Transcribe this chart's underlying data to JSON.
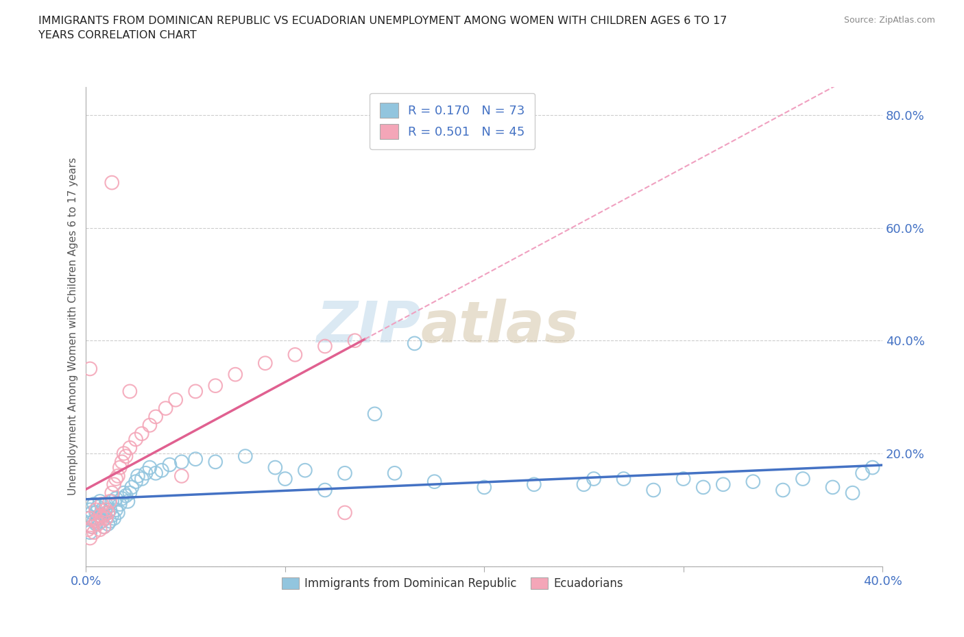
{
  "title": "IMMIGRANTS FROM DOMINICAN REPUBLIC VS ECUADORIAN UNEMPLOYMENT AMONG WOMEN WITH CHILDREN AGES 6 TO 17\nYEARS CORRELATION CHART",
  "source": "Source: ZipAtlas.com",
  "ylabel": "Unemployment Among Women with Children Ages 6 to 17 years",
  "xlim": [
    0.0,
    0.4
  ],
  "ylim": [
    0.0,
    0.85
  ],
  "xticks": [
    0.0,
    0.1,
    0.2,
    0.3,
    0.4
  ],
  "xtick_labels": [
    "0.0%",
    "",
    "",
    "",
    "40.0%"
  ],
  "ytick_labels": [
    "",
    "20.0%",
    "40.0%",
    "60.0%",
    "80.0%"
  ],
  "yticks": [
    0.0,
    0.2,
    0.4,
    0.6,
    0.8
  ],
  "legend_label1": "Immigrants from Dominican Republic",
  "legend_label2": "Ecuadorians",
  "R1": 0.17,
  "N1": 73,
  "R2": 0.501,
  "N2": 45,
  "color1": "#92C5DE",
  "color2": "#F4A6B8",
  "line1_color": "#4472C4",
  "line2_color": "#E06090",
  "line2_dash_color": "#F0A0C0",
  "watermark_zip": "ZIP",
  "watermark_atlas": "atlas",
  "background_color": "#ffffff",
  "grid_color": "#cccccc",
  "scatter1_x": [
    0.001,
    0.002,
    0.002,
    0.003,
    0.003,
    0.004,
    0.004,
    0.005,
    0.005,
    0.006,
    0.006,
    0.007,
    0.007,
    0.008,
    0.008,
    0.009,
    0.009,
    0.01,
    0.01,
    0.011,
    0.011,
    0.012,
    0.012,
    0.013,
    0.013,
    0.014,
    0.015,
    0.015,
    0.016,
    0.017,
    0.018,
    0.019,
    0.02,
    0.021,
    0.022,
    0.023,
    0.025,
    0.026,
    0.028,
    0.03,
    0.032,
    0.035,
    0.038,
    0.042,
    0.048,
    0.055,
    0.065,
    0.08,
    0.095,
    0.11,
    0.13,
    0.155,
    0.175,
    0.2,
    0.225,
    0.255,
    0.285,
    0.31,
    0.335,
    0.36,
    0.375,
    0.385,
    0.395,
    0.1,
    0.12,
    0.145,
    0.165,
    0.25,
    0.27,
    0.3,
    0.32,
    0.35,
    0.39
  ],
  "scatter1_y": [
    0.085,
    0.06,
    0.1,
    0.07,
    0.095,
    0.08,
    0.11,
    0.075,
    0.095,
    0.085,
    0.105,
    0.09,
    0.115,
    0.08,
    0.1,
    0.07,
    0.09,
    0.085,
    0.11,
    0.075,
    0.095,
    0.08,
    0.1,
    0.09,
    0.115,
    0.085,
    0.1,
    0.12,
    0.095,
    0.11,
    0.12,
    0.13,
    0.125,
    0.115,
    0.13,
    0.14,
    0.15,
    0.16,
    0.155,
    0.165,
    0.175,
    0.165,
    0.17,
    0.18,
    0.185,
    0.19,
    0.185,
    0.195,
    0.175,
    0.17,
    0.165,
    0.165,
    0.15,
    0.14,
    0.145,
    0.155,
    0.135,
    0.14,
    0.15,
    0.155,
    0.14,
    0.13,
    0.175,
    0.155,
    0.135,
    0.27,
    0.395,
    0.145,
    0.155,
    0.155,
    0.145,
    0.135,
    0.165
  ],
  "scatter2_x": [
    0.001,
    0.002,
    0.002,
    0.003,
    0.004,
    0.005,
    0.005,
    0.006,
    0.007,
    0.007,
    0.008,
    0.008,
    0.009,
    0.009,
    0.01,
    0.01,
    0.011,
    0.012,
    0.013,
    0.014,
    0.015,
    0.016,
    0.017,
    0.018,
    0.019,
    0.02,
    0.022,
    0.025,
    0.028,
    0.032,
    0.035,
    0.04,
    0.045,
    0.055,
    0.065,
    0.075,
    0.09,
    0.105,
    0.12,
    0.135,
    0.002,
    0.013,
    0.022,
    0.048,
    0.13
  ],
  "scatter2_y": [
    0.065,
    0.05,
    0.085,
    0.07,
    0.06,
    0.08,
    0.1,
    0.075,
    0.09,
    0.065,
    0.085,
    0.11,
    0.07,
    0.09,
    0.085,
    0.1,
    0.095,
    0.115,
    0.13,
    0.145,
    0.155,
    0.16,
    0.175,
    0.185,
    0.2,
    0.195,
    0.21,
    0.225,
    0.235,
    0.25,
    0.265,
    0.28,
    0.295,
    0.31,
    0.32,
    0.34,
    0.36,
    0.375,
    0.39,
    0.4,
    0.35,
    0.68,
    0.31,
    0.16,
    0.095
  ],
  "line2_solid_end": 0.14
}
